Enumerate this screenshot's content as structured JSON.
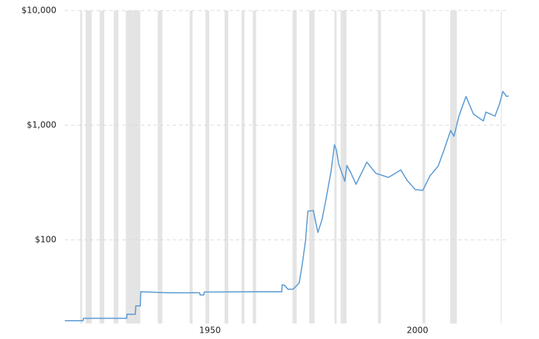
{
  "chart_data": {
    "type": "line",
    "log_scale": true,
    "grid": true,
    "xlim": [
      1915,
      2022
    ],
    "ylim": [
      18.6,
      10000
    ],
    "xticks": [
      1950,
      2000
    ],
    "yticks": [
      {
        "value": 100,
        "label": "$100"
      },
      {
        "value": 1000,
        "label": "$1,000"
      },
      {
        "value": 10000,
        "label": "$10,000"
      }
    ],
    "recession_color": "#e4e4e4",
    "recessions": [
      [
        1918.7,
        1919.2
      ],
      [
        1920.0,
        1921.5
      ],
      [
        1923.4,
        1924.5
      ],
      [
        1926.8,
        1927.9
      ],
      [
        1929.7,
        1933.2
      ],
      [
        1937.4,
        1938.5
      ],
      [
        1945.1,
        1945.8
      ],
      [
        1948.9,
        1949.8
      ],
      [
        1953.5,
        1954.4
      ],
      [
        1957.6,
        1958.3
      ],
      [
        1960.3,
        1961.1
      ],
      [
        1969.9,
        1970.9
      ],
      [
        1973.9,
        1975.2
      ],
      [
        1980.0,
        1980.5
      ],
      [
        1981.5,
        1982.9
      ],
      [
        1990.5,
        1991.2
      ],
      [
        2001.2,
        2001.9
      ],
      [
        2007.9,
        2009.5
      ],
      [
        2020.1,
        2020.3
      ]
    ],
    "series": [
      {
        "color": "#5b9bd5",
        "x": [
          1915.0,
          1919.4,
          1919.5,
          1929.9,
          1930.0,
          1932.0,
          1932.1,
          1933.2,
          1933.3,
          1940.0,
          1947.5,
          1947.6,
          1948.5,
          1948.6,
          1960.0,
          1967.3,
          1967.4,
          1968.0,
          1968.8,
          1970.0,
          1971.5,
          1972.2,
          1973.0,
          1973.6,
          1974.9,
          1976.0,
          1977.0,
          1978.0,
          1979.2,
          1980.0,
          1980.5,
          1981.0,
          1982.5,
          1983.0,
          1984.0,
          1985.2,
          1987.8,
          1990.0,
          1993.0,
          1996.0,
          1997.5,
          1999.5,
          2001.3,
          2003.0,
          2005.0,
          2006.5,
          2008.0,
          2008.8,
          2010.0,
          2011.7,
          2013.5,
          2015.9,
          2016.5,
          2018.7,
          2019.7,
          2020.6,
          2021.5,
          2022.0
        ],
        "values": [
          19.7,
          19.7,
          20.67,
          20.67,
          22.4,
          22.4,
          26.5,
          26.5,
          35.2,
          34.5,
          34.5,
          33,
          33,
          35,
          35.2,
          35.2,
          40.5,
          40,
          37,
          37,
          42,
          60,
          97,
          178,
          180,
          116,
          150,
          230,
          400,
          675,
          600,
          460,
          324,
          445,
          380,
          305,
          476,
          380,
          350,
          407,
          330,
          274,
          270,
          360,
          440,
          620,
          900,
          800,
          1200,
          1780,
          1250,
          1089,
          1300,
          1200,
          1500,
          1970,
          1780,
          1800
        ]
      }
    ]
  }
}
